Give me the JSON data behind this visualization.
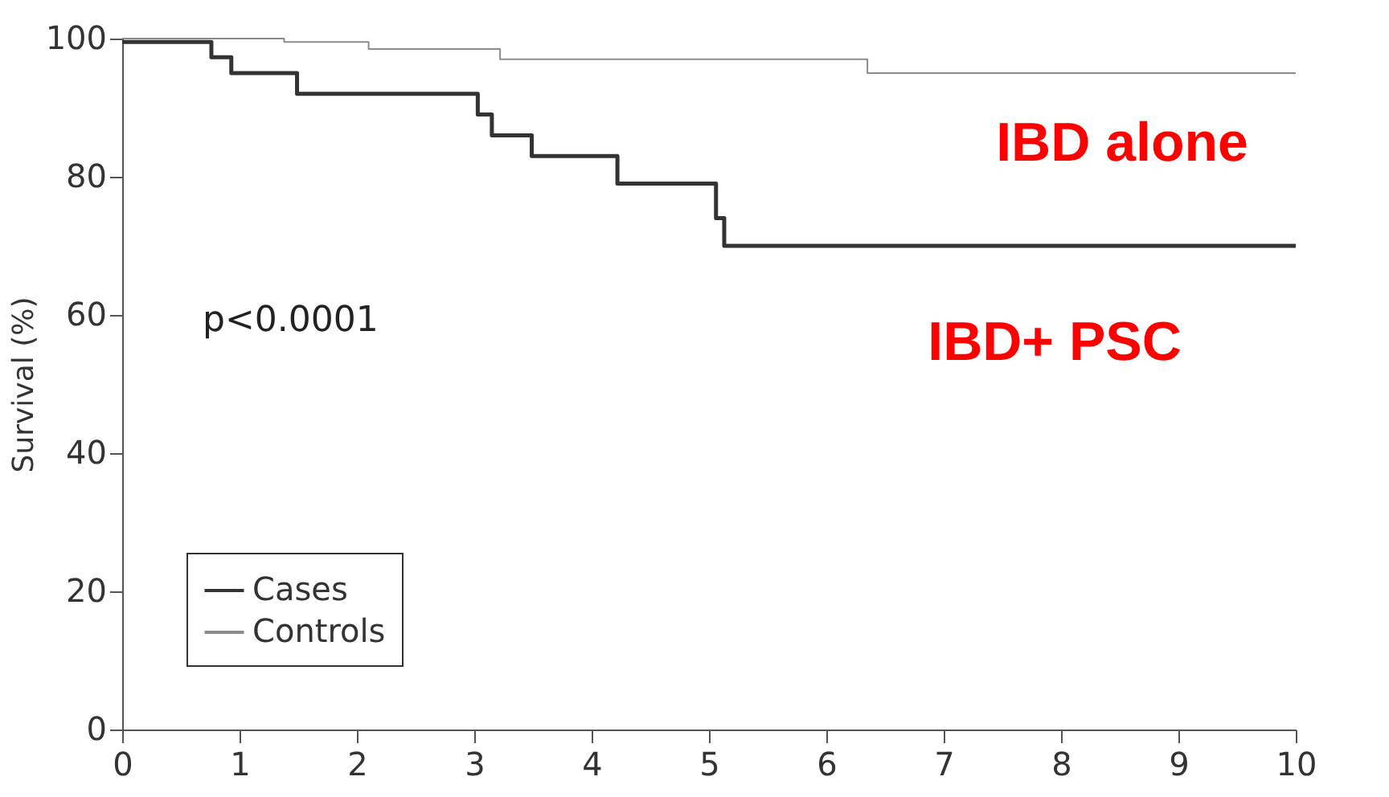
{
  "chart_data": {
    "type": "step",
    "ylabel": "Survival (%)",
    "xlim": [
      0,
      10
    ],
    "xticks": [
      0,
      1,
      2,
      3,
      4,
      5,
      6,
      7,
      8,
      9,
      10
    ],
    "ylim": [
      0,
      100
    ],
    "yticks": [
      0,
      20,
      40,
      60,
      80,
      100
    ],
    "grid": false,
    "legend": "bottom left",
    "marker": "none",
    "line_style": "solid",
    "series": [
      {
        "name": "Cases",
        "color": "#333333",
        "x": [
          0,
          0.76,
          0.93,
          1.49,
          3.03,
          3.15,
          3.49,
          4.22,
          5.06,
          5.13,
          10
        ],
        "values": [
          99.5,
          97.3,
          95,
          92,
          89,
          86,
          83,
          79,
          74,
          70,
          70
        ]
      },
      {
        "name": "Controls",
        "color": "#8c8c8c",
        "x": [
          0,
          1.38,
          2.1,
          3.22,
          6.35,
          10
        ],
        "values": [
          100,
          99.5,
          98.5,
          97,
          95,
          95
        ]
      }
    ],
    "annotations": [
      "p<0.0001",
      "IBD alone",
      "IBD+ PSC"
    ]
  }
}
